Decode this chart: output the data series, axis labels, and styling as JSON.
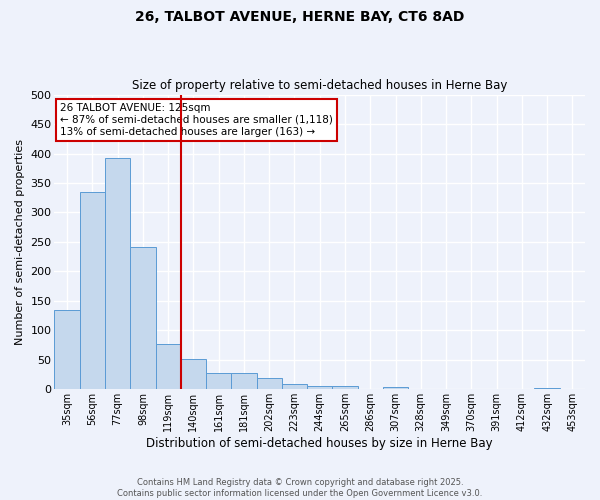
{
  "title1": "26, TALBOT AVENUE, HERNE BAY, CT6 8AD",
  "title2": "Size of property relative to semi-detached houses in Herne Bay",
  "xlabel": "Distribution of semi-detached houses by size in Herne Bay",
  "ylabel": "Number of semi-detached properties",
  "bin_labels": [
    "35sqm",
    "56sqm",
    "77sqm",
    "98sqm",
    "119sqm",
    "140sqm",
    "161sqm",
    "181sqm",
    "202sqm",
    "223sqm",
    "244sqm",
    "265sqm",
    "286sqm",
    "307sqm",
    "328sqm",
    "349sqm",
    "370sqm",
    "391sqm",
    "412sqm",
    "432sqm",
    "453sqm"
  ],
  "bar_heights": [
    134,
    335,
    393,
    241,
    77,
    52,
    27,
    27,
    19,
    9,
    5,
    5,
    0,
    4,
    0,
    0,
    0,
    0,
    0,
    3,
    0
  ],
  "bar_color": "#c5d8ed",
  "bar_edge_color": "#5b9bd5",
  "vline_x": 4.5,
  "vline_color": "#cc0000",
  "annotation_text1": "26 TALBOT AVENUE: 125sqm",
  "annotation_text2": "← 87% of semi-detached houses are smaller (1,118)",
  "annotation_text3": "13% of semi-detached houses are larger (163) →",
  "annotation_box_color": "#ffffff",
  "annotation_box_edge": "#cc0000",
  "ylim": [
    0,
    500
  ],
  "yticks": [
    0,
    50,
    100,
    150,
    200,
    250,
    300,
    350,
    400,
    450,
    500
  ],
  "background_color": "#eef2fb",
  "grid_color": "#ffffff",
  "footer1": "Contains HM Land Registry data © Crown copyright and database right 2025.",
  "footer2": "Contains public sector information licensed under the Open Government Licence v3.0."
}
